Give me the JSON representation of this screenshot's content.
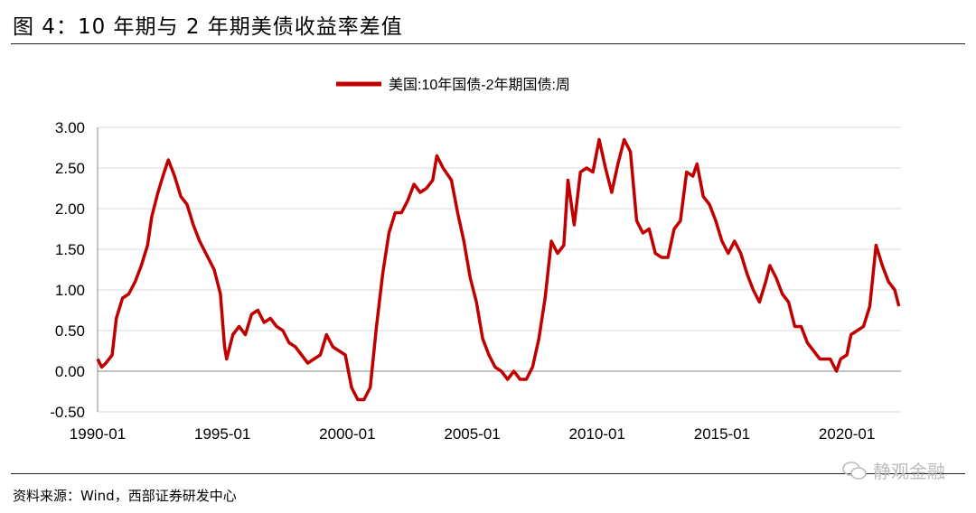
{
  "header": {
    "title": "图 4：10 年期与 2 年期美债收益率差值"
  },
  "footer": {
    "source": "资料来源：Wind，西部证券研发中心",
    "watermark": "静观金融"
  },
  "colors": {
    "series": "#c00000",
    "grid": "#d9d9d9",
    "axis": "#888888"
  },
  "chart_data": {
    "type": "line",
    "title": "",
    "xlabel": "",
    "ylabel": "",
    "ylim": [
      -0.5,
      3.0
    ],
    "xlim": [
      "1990-01",
      "2022-03"
    ],
    "yticks": [
      "3.00",
      "2.50",
      "2.00",
      "1.50",
      "1.00",
      "0.50",
      "0.00",
      "-0.50"
    ],
    "xticks": [
      "1990-01",
      "1995-01",
      "2000-01",
      "2005-01",
      "2010-01",
      "2015-01",
      "2020-01"
    ],
    "grid": true,
    "legend": "top-center",
    "series": [
      {
        "name": "美国:10年国债-2年期国债:周",
        "points": [
          [
            "1990-01",
            0.15
          ],
          [
            "1990-03",
            0.05
          ],
          [
            "1990-05",
            0.1
          ],
          [
            "1990-08",
            0.2
          ],
          [
            "1990-10",
            0.65
          ],
          [
            "1991-01",
            0.9
          ],
          [
            "1991-04",
            0.95
          ],
          [
            "1991-07",
            1.1
          ],
          [
            "1991-10",
            1.3
          ],
          [
            "1992-01",
            1.55
          ],
          [
            "1992-03",
            1.9
          ],
          [
            "1992-06",
            2.2
          ],
          [
            "1992-09",
            2.45
          ],
          [
            "1992-11",
            2.6
          ],
          [
            "1993-02",
            2.4
          ],
          [
            "1993-05",
            2.15
          ],
          [
            "1993-08",
            2.05
          ],
          [
            "1993-11",
            1.8
          ],
          [
            "1994-02",
            1.6
          ],
          [
            "1994-05",
            1.45
          ],
          [
            "1994-09",
            1.25
          ],
          [
            "1994-12",
            0.95
          ],
          [
            "1995-02",
            0.3
          ],
          [
            "1995-03",
            0.15
          ],
          [
            "1995-06",
            0.45
          ],
          [
            "1995-09",
            0.55
          ],
          [
            "1995-12",
            0.45
          ],
          [
            "1996-03",
            0.7
          ],
          [
            "1996-06",
            0.75
          ],
          [
            "1996-09",
            0.6
          ],
          [
            "1996-12",
            0.65
          ],
          [
            "1997-03",
            0.55
          ],
          [
            "1997-06",
            0.5
          ],
          [
            "1997-09",
            0.35
          ],
          [
            "1997-12",
            0.3
          ],
          [
            "1998-03",
            0.2
          ],
          [
            "1998-06",
            0.1
          ],
          [
            "1998-09",
            0.15
          ],
          [
            "1998-12",
            0.2
          ],
          [
            "1999-03",
            0.45
          ],
          [
            "1999-06",
            0.3
          ],
          [
            "1999-09",
            0.25
          ],
          [
            "1999-12",
            0.2
          ],
          [
            "2000-03",
            -0.2
          ],
          [
            "2000-06",
            -0.35
          ],
          [
            "2000-09",
            -0.35
          ],
          [
            "2000-12",
            -0.2
          ],
          [
            "2001-03",
            0.55
          ],
          [
            "2001-06",
            1.2
          ],
          [
            "2001-09",
            1.7
          ],
          [
            "2001-12",
            1.95
          ],
          [
            "2002-03",
            1.95
          ],
          [
            "2002-06",
            2.1
          ],
          [
            "2002-09",
            2.3
          ],
          [
            "2002-12",
            2.2
          ],
          [
            "2003-03",
            2.25
          ],
          [
            "2003-06",
            2.35
          ],
          [
            "2003-08",
            2.65
          ],
          [
            "2003-11",
            2.5
          ],
          [
            "2004-03",
            2.35
          ],
          [
            "2004-06",
            1.95
          ],
          [
            "2004-09",
            1.6
          ],
          [
            "2004-12",
            1.15
          ],
          [
            "2005-03",
            0.85
          ],
          [
            "2005-06",
            0.4
          ],
          [
            "2005-09",
            0.2
          ],
          [
            "2005-12",
            0.05
          ],
          [
            "2006-03",
            0.0
          ],
          [
            "2006-06",
            -0.1
          ],
          [
            "2006-09",
            0.0
          ],
          [
            "2006-12",
            -0.1
          ],
          [
            "2007-03",
            -0.1
          ],
          [
            "2007-06",
            0.05
          ],
          [
            "2007-09",
            0.4
          ],
          [
            "2007-12",
            0.9
          ],
          [
            "2008-03",
            1.6
          ],
          [
            "2008-06",
            1.45
          ],
          [
            "2008-09",
            1.55
          ],
          [
            "2008-11",
            2.35
          ],
          [
            "2009-02",
            1.8
          ],
          [
            "2009-05",
            2.45
          ],
          [
            "2009-08",
            2.5
          ],
          [
            "2009-11",
            2.45
          ],
          [
            "2010-02",
            2.85
          ],
          [
            "2010-05",
            2.5
          ],
          [
            "2010-08",
            2.2
          ],
          [
            "2010-11",
            2.55
          ],
          [
            "2011-02",
            2.85
          ],
          [
            "2011-05",
            2.7
          ],
          [
            "2011-08",
            1.85
          ],
          [
            "2011-11",
            1.7
          ],
          [
            "2012-02",
            1.75
          ],
          [
            "2012-05",
            1.45
          ],
          [
            "2012-08",
            1.4
          ],
          [
            "2012-11",
            1.4
          ],
          [
            "2013-02",
            1.75
          ],
          [
            "2013-05",
            1.85
          ],
          [
            "2013-08",
            2.45
          ],
          [
            "2013-11",
            2.4
          ],
          [
            "2014-01",
            2.55
          ],
          [
            "2014-04",
            2.15
          ],
          [
            "2014-07",
            2.05
          ],
          [
            "2014-10",
            1.85
          ],
          [
            "2015-01",
            1.6
          ],
          [
            "2015-04",
            1.45
          ],
          [
            "2015-07",
            1.6
          ],
          [
            "2015-10",
            1.45
          ],
          [
            "2016-01",
            1.2
          ],
          [
            "2016-04",
            1.0
          ],
          [
            "2016-07",
            0.85
          ],
          [
            "2016-10",
            1.1
          ],
          [
            "2016-12",
            1.3
          ],
          [
            "2017-03",
            1.15
          ],
          [
            "2017-06",
            0.95
          ],
          [
            "2017-09",
            0.85
          ],
          [
            "2017-12",
            0.55
          ],
          [
            "2018-03",
            0.55
          ],
          [
            "2018-06",
            0.35
          ],
          [
            "2018-09",
            0.25
          ],
          [
            "2018-12",
            0.15
          ],
          [
            "2019-03",
            0.15
          ],
          [
            "2019-05",
            0.15
          ],
          [
            "2019-08",
            0.0
          ],
          [
            "2019-10",
            0.15
          ],
          [
            "2020-01",
            0.2
          ],
          [
            "2020-03",
            0.45
          ],
          [
            "2020-06",
            0.5
          ],
          [
            "2020-09",
            0.55
          ],
          [
            "2020-12",
            0.8
          ],
          [
            "2021-03",
            1.55
          ],
          [
            "2021-06",
            1.3
          ],
          [
            "2021-09",
            1.1
          ],
          [
            "2021-12",
            1.0
          ],
          [
            "2022-02",
            0.8
          ]
        ]
      }
    ]
  }
}
